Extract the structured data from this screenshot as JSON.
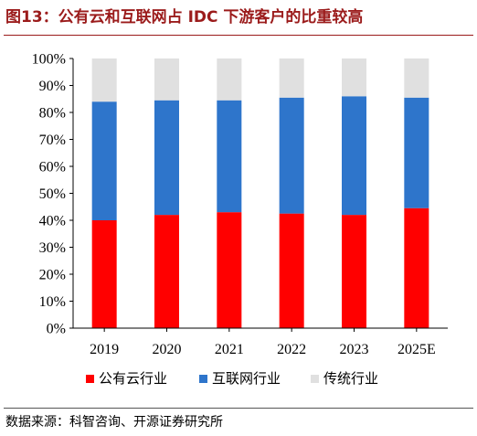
{
  "title": "图13：公有云和互联网占 IDC 下游客户的比重较高",
  "source": "数据来源：科智咨询、开源证券研究所",
  "chart_data": {
    "type": "bar",
    "stacked": true,
    "categories": [
      "2019",
      "2020",
      "2021",
      "2022",
      "2023",
      "2025E"
    ],
    "series": [
      {
        "name": "公有云行业",
        "color": "#ff0000",
        "values": [
          40,
          42,
          43,
          42.5,
          42,
          44.5
        ]
      },
      {
        "name": "互联网行业",
        "color": "#2e75cb",
        "values": [
          44,
          42.5,
          41.5,
          43,
          44,
          41
        ]
      },
      {
        "name": "传统行业",
        "color": "#e0e0e0",
        "values": [
          16,
          15.5,
          15.5,
          14.5,
          14,
          14.5
        ]
      }
    ],
    "ylim": [
      0,
      100
    ],
    "yticks": [
      "0%",
      "10%",
      "20%",
      "30%",
      "40%",
      "50%",
      "60%",
      "70%",
      "80%",
      "90%",
      "100%"
    ],
    "legend_position": "bottom",
    "grid": false
  }
}
